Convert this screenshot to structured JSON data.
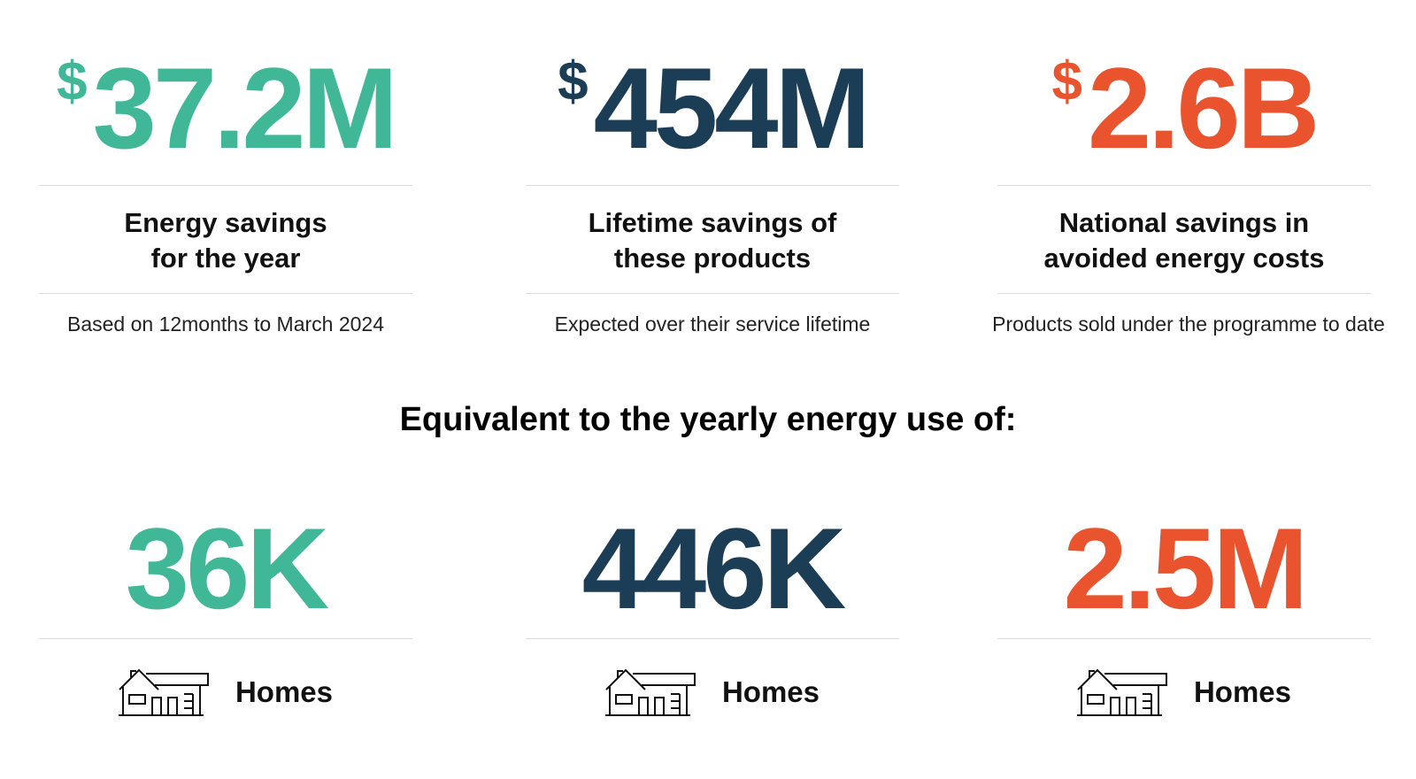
{
  "stats": [
    {
      "currency": "$",
      "amount": "37.2M",
      "label_line1": "Energy savings",
      "label_line2": "for the year",
      "note": "Based on 12months to March 2024",
      "color": "#40b898"
    },
    {
      "currency": "$",
      "amount": "454M",
      "label_line1": "Lifetime savings of",
      "label_line2": "these products",
      "note": "Expected over their service lifetime",
      "color": "#1b3d55"
    },
    {
      "currency": "$",
      "amount": "2.6B",
      "label_line1": "National savings in",
      "label_line2": "avoided energy costs",
      "note": "Products sold under the programme to date",
      "color": "#e9542e"
    }
  ],
  "equivalent_heading": "Equivalent to the yearly energy use of:",
  "equivalents": [
    {
      "value": "36K",
      "icon": "house-icon",
      "label": "Homes",
      "color": "#40b898"
    },
    {
      "value": "446K",
      "icon": "house-icon",
      "label": "Homes",
      "color": "#1b3d55"
    },
    {
      "value": "2.5M",
      "icon": "house-icon",
      "label": "Homes",
      "color": "#e9542e"
    }
  ]
}
